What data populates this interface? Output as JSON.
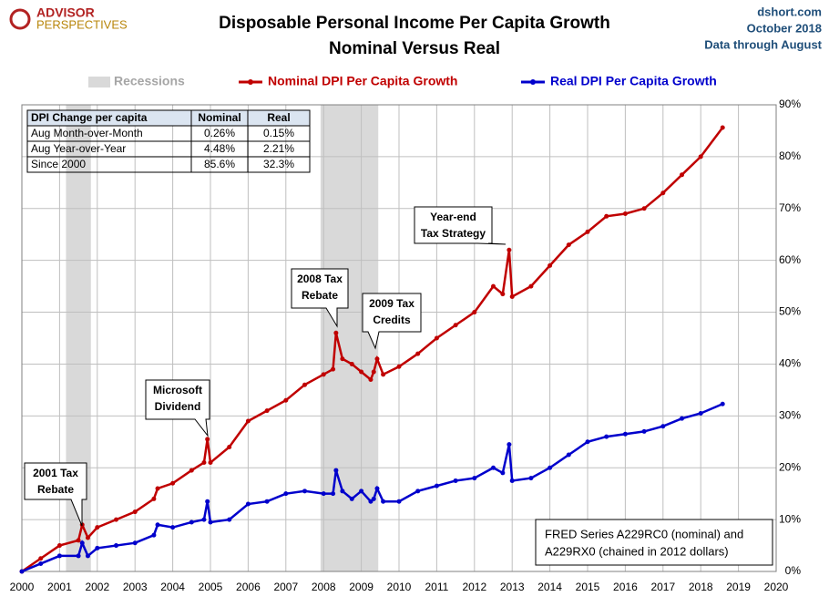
{
  "header": {
    "logo": [
      "ADVISOR",
      "PERSPECTIVES"
    ],
    "site": "dshort.com",
    "date": "October 2018",
    "note": "Data through August"
  },
  "chart_data": {
    "type": "line",
    "title": [
      "Disposable Personal Income Per Capita Growth",
      "Nominal Versus Real"
    ],
    "recession_label": "Recessions",
    "recession_color": "#d9d9d9",
    "recessions": [
      [
        2001.17,
        2001.83
      ],
      [
        2007.92,
        2009.45
      ]
    ],
    "grid": true,
    "xlim": [
      2000,
      2020
    ],
    "xticks": [
      2000,
      2001,
      2002,
      2003,
      2004,
      2005,
      2006,
      2007,
      2008,
      2009,
      2010,
      2011,
      2012,
      2013,
      2014,
      2015,
      2016,
      2017,
      2018,
      2019,
      2020
    ],
    "ylim": [
      0,
      90
    ],
    "yticks": [
      {
        "value": 0,
        "label": "0%"
      },
      {
        "value": 10,
        "label": "10%"
      },
      {
        "value": 20,
        "label": "20%"
      },
      {
        "value": 30,
        "label": "30%"
      },
      {
        "value": 40,
        "label": "40%"
      },
      {
        "value": 50,
        "label": "50%"
      },
      {
        "value": 60,
        "label": "60%"
      },
      {
        "value": 70,
        "label": "70%"
      },
      {
        "value": 80,
        "label": "80%"
      },
      {
        "value": 90,
        "label": "90%"
      }
    ],
    "x": [
      2000,
      2000.5,
      2001,
      2001.5,
      2001.6,
      2001.75,
      2002,
      2002.5,
      2003,
      2003.5,
      2003.6,
      2004,
      2004.5,
      2004.83,
      2004.92,
      2005,
      2005.5,
      2006,
      2006.5,
      2007,
      2007.5,
      2008,
      2008.25,
      2008.33,
      2008.5,
      2008.75,
      2009,
      2009.25,
      2009.33,
      2009.42,
      2009.58,
      2010,
      2010.5,
      2011,
      2011.5,
      2012,
      2012.5,
      2012.75,
      2012.92,
      2013,
      2013.5,
      2014,
      2014.5,
      2015,
      2015.5,
      2016,
      2016.5,
      2017,
      2017.5,
      2018,
      2018.58
    ],
    "series": [
      {
        "name": "Nominal DPI Per Capita Growth",
        "color": "#c00000",
        "values": [
          0,
          2.5,
          5,
          6,
          9,
          6.5,
          8.5,
          10,
          11.5,
          14,
          16,
          17,
          19.5,
          21,
          25.5,
          21,
          24,
          29,
          31,
          33,
          36,
          38,
          39,
          46,
          41,
          40,
          38.5,
          37,
          38.5,
          41,
          38,
          39.5,
          42,
          45,
          47.5,
          50,
          55,
          53.5,
          62,
          53,
          55,
          59,
          63,
          65.5,
          68.5,
          69,
          70,
          73,
          76.5,
          80,
          85.6
        ]
      },
      {
        "name": "Real DPI Per Capita Growth",
        "color": "#0000cc",
        "values": [
          0,
          1.5,
          3,
          3,
          5.5,
          3,
          4.5,
          5,
          5.5,
          7,
          9,
          8.5,
          9.5,
          10,
          13.5,
          9.5,
          10,
          13,
          13.5,
          15,
          15.5,
          15,
          15,
          19.5,
          15.5,
          14,
          15.5,
          13.5,
          14,
          16,
          13.5,
          13.5,
          15.5,
          16.5,
          17.5,
          18,
          20,
          19,
          24.5,
          17.5,
          18,
          20,
          22.5,
          25,
          26,
          26.5,
          27,
          28,
          29.5,
          30.5,
          32.3
        ]
      }
    ],
    "annotations": [
      [
        "2001 Tax",
        "Rebate"
      ],
      [
        "Microsoft",
        "Dividend"
      ],
      [
        "2008 Tax",
        "Rebate"
      ],
      [
        "2009 Tax",
        "Credits"
      ],
      [
        "Year-end",
        "Tax Strategy"
      ]
    ],
    "table": {
      "header": [
        "DPI Change per capita",
        "Nominal",
        "Real"
      ],
      "rows": [
        [
          "Aug Month-over-Month",
          "0.26%",
          "0.15%"
        ],
        [
          "Aug Year-over-Year",
          "4.48%",
          "2.21%"
        ],
        [
          "Since 2000",
          "85.6%",
          "32.3%"
        ]
      ]
    },
    "source": [
      "FRED Series A229RC0 (nominal) and",
      "A229RX0 (chained in 2012 dollars)"
    ]
  }
}
